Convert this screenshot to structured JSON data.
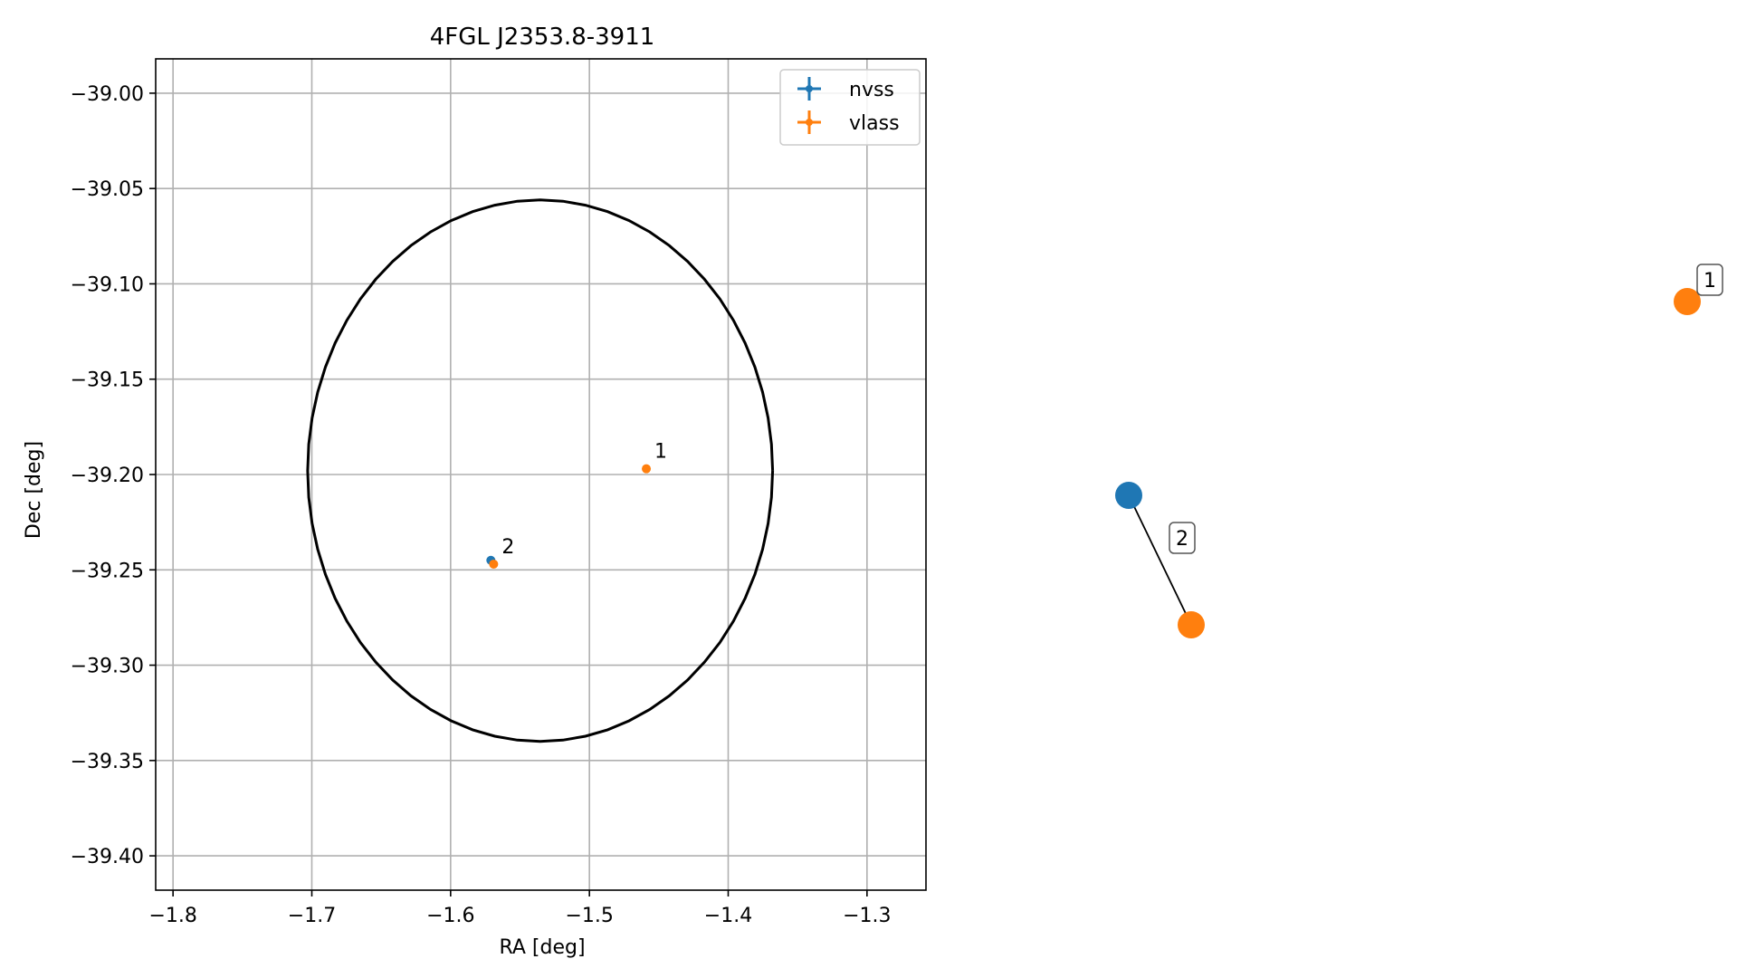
{
  "chart_data": [
    {
      "type": "scatter",
      "title": "4FGL J2353.8-3911",
      "xlabel": "RA [deg]",
      "ylabel": "Dec [deg]",
      "xlim": [
        -1.8125,
        -1.2575
      ],
      "ylim": [
        -39.418,
        -38.982
      ],
      "xticks": [
        {
          "value": -1.8,
          "label": "−1.8"
        },
        {
          "value": -1.7,
          "label": "−1.7"
        },
        {
          "value": -1.6,
          "label": "−1.6"
        },
        {
          "value": -1.5,
          "label": "−1.5"
        },
        {
          "value": -1.4,
          "label": "−1.4"
        },
        {
          "value": -1.3,
          "label": "−1.3"
        }
      ],
      "yticks": [
        {
          "value": -39.0,
          "label": "−39.00"
        },
        {
          "value": -39.05,
          "label": "−39.05"
        },
        {
          "value": -39.1,
          "label": "−39.10"
        },
        {
          "value": -39.15,
          "label": "−39.15"
        },
        {
          "value": -39.2,
          "label": "−39.20"
        },
        {
          "value": -39.25,
          "label": "−39.25"
        },
        {
          "value": -39.3,
          "label": "−39.30"
        },
        {
          "value": -39.35,
          "label": "−39.35"
        },
        {
          "value": -39.4,
          "label": "−39.40"
        }
      ],
      "grid": true,
      "legend_position": "upper right",
      "series": [
        {
          "name": "nvss",
          "color": "#1f77b4",
          "points": [
            {
              "ra": -1.571,
              "dec": -39.245
            }
          ]
        },
        {
          "name": "vlass",
          "color": "#ff7f0e",
          "points": [
            {
              "ra": -1.459,
              "dec": -39.197
            },
            {
              "ra": -1.569,
              "dec": -39.247
            }
          ]
        }
      ],
      "annotations": [
        {
          "text": "1",
          "ra": -1.459,
          "dec": -39.197
        },
        {
          "text": "2",
          "ra": -1.569,
          "dec": -39.247
        }
      ],
      "ellipse": {
        "center_ra": -1.5355,
        "center_dec": -39.198,
        "semi_ra": 0.1675,
        "semi_dec": 0.142,
        "color": "#000000"
      }
    },
    {
      "type": "graph",
      "nodes": [
        {
          "id": "nvss-2",
          "series": "nvss",
          "color": "#1f77b4"
        },
        {
          "id": "vlass-2",
          "series": "vlass",
          "color": "#ff7f0e"
        },
        {
          "id": "vlass-1",
          "series": "vlass",
          "color": "#ff7f0e"
        }
      ],
      "edges": [
        {
          "from": "nvss-2",
          "to": "vlass-2",
          "label": "2"
        }
      ],
      "node_labels": [
        {
          "node": "vlass-1",
          "label": "1"
        }
      ]
    }
  ]
}
